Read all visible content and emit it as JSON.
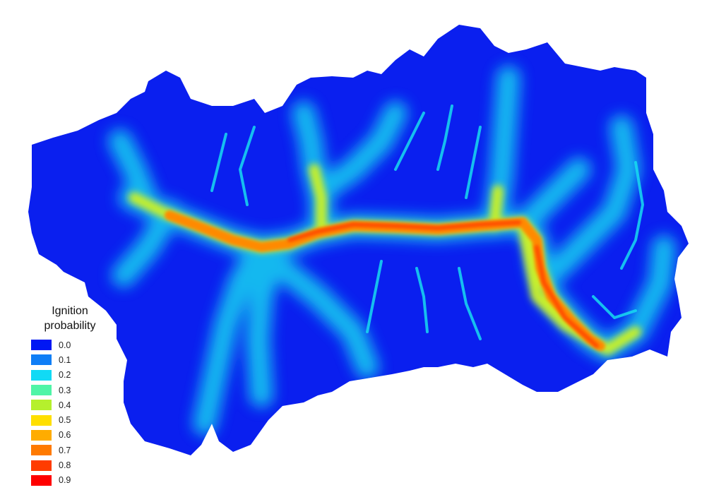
{
  "legend": {
    "title_line1": "Ignition",
    "title_line2": "probability",
    "items": [
      {
        "label": "0.0",
        "color": "#0017f4"
      },
      {
        "label": "0.1",
        "color": "#0f7ef6"
      },
      {
        "label": "0.2",
        "color": "#11daf5"
      },
      {
        "label": "0.3",
        "color": "#4ff5a7"
      },
      {
        "label": "0.4",
        "color": "#b5f02d"
      },
      {
        "label": "0.5",
        "color": "#ffdf00"
      },
      {
        "label": "0.6",
        "color": "#ffac00"
      },
      {
        "label": "0.7",
        "color": "#ff7a00"
      },
      {
        "label": "0.8",
        "color": "#ff3c00"
      },
      {
        "label": "0.9",
        "color": "#ff0000"
      }
    ]
  },
  "map": {
    "background_color": "#0a1fef",
    "low_color": "#0017f4",
    "high_color": "#ff3c00"
  }
}
